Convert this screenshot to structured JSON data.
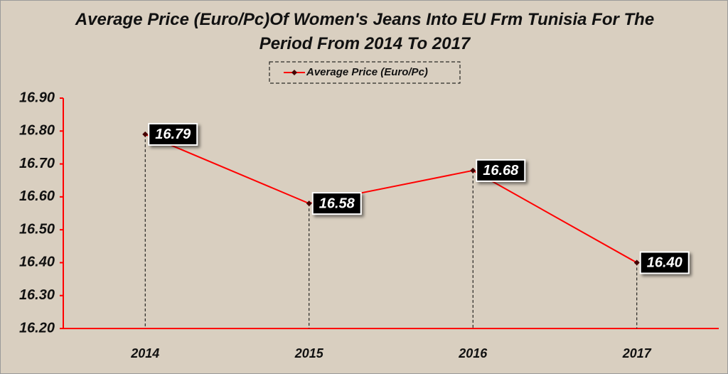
{
  "chart_data": {
    "type": "line",
    "title": "Average Price (Euro/Pc)Of Women's Jeans Into EU Frm Tunisia For The Period From 2014 To 2017",
    "categories": [
      "2014",
      "2015",
      "2016",
      "2017"
    ],
    "series": [
      {
        "name": "Average Price (Euro/Pc)",
        "color": "#ff0000",
        "values": [
          16.79,
          16.58,
          16.68,
          16.4
        ],
        "value_labels": [
          "16.79",
          "16.58",
          "16.68",
          "16.40"
        ]
      }
    ],
    "ylim": [
      16.2,
      16.9
    ],
    "yticks": [
      {
        "value": 16.2,
        "label": "16.20"
      },
      {
        "value": 16.3,
        "label": "16.30"
      },
      {
        "value": 16.4,
        "label": "16.40"
      },
      {
        "value": 16.5,
        "label": "16.50"
      },
      {
        "value": 16.6,
        "label": "16.60"
      },
      {
        "value": 16.7,
        "label": "16.70"
      },
      {
        "value": 16.8,
        "label": "16.80"
      },
      {
        "value": 16.9,
        "label": "16.90"
      }
    ],
    "grid": false,
    "legend": "top"
  }
}
